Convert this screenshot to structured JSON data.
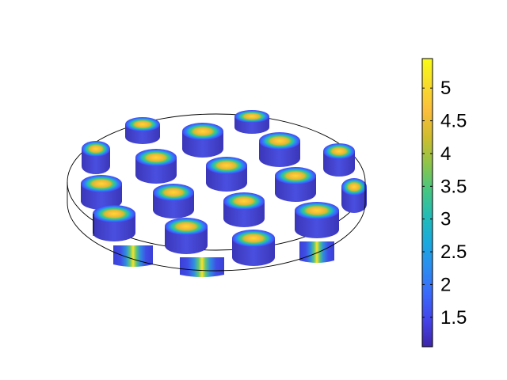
{
  "chart_data": {
    "type": "heatmap",
    "title": "",
    "xlabel": "",
    "ylabel": "",
    "description_of_scene": "",
    "colorbar": {
      "range": [
        1.05,
        5.45
      ],
      "ticks": [
        {
          "value": 1.5,
          "label": "1.5"
        },
        {
          "value": 2,
          "label": "2"
        },
        {
          "value": 2.5,
          "label": "2.5"
        },
        {
          "value": 3,
          "label": "3"
        },
        {
          "value": 3.5,
          "label": "3.5"
        },
        {
          "value": 4,
          "label": "4"
        },
        {
          "value": 4.5,
          "label": "4.5"
        },
        {
          "value": 5,
          "label": "5"
        }
      ],
      "colormap": [
        "#3e26a8",
        "#4443e8",
        "#3a68fb",
        "#2b8cf1",
        "#1aaadd",
        "#23bcb5",
        "#48c680",
        "#8fc448",
        "#cfbd2f",
        "#fbbd3c",
        "#f7dc2b",
        "#f9fb15"
      ]
    },
    "cylinders": {
      "core_value": 5.3,
      "edge_value": 1.1
    }
  }
}
